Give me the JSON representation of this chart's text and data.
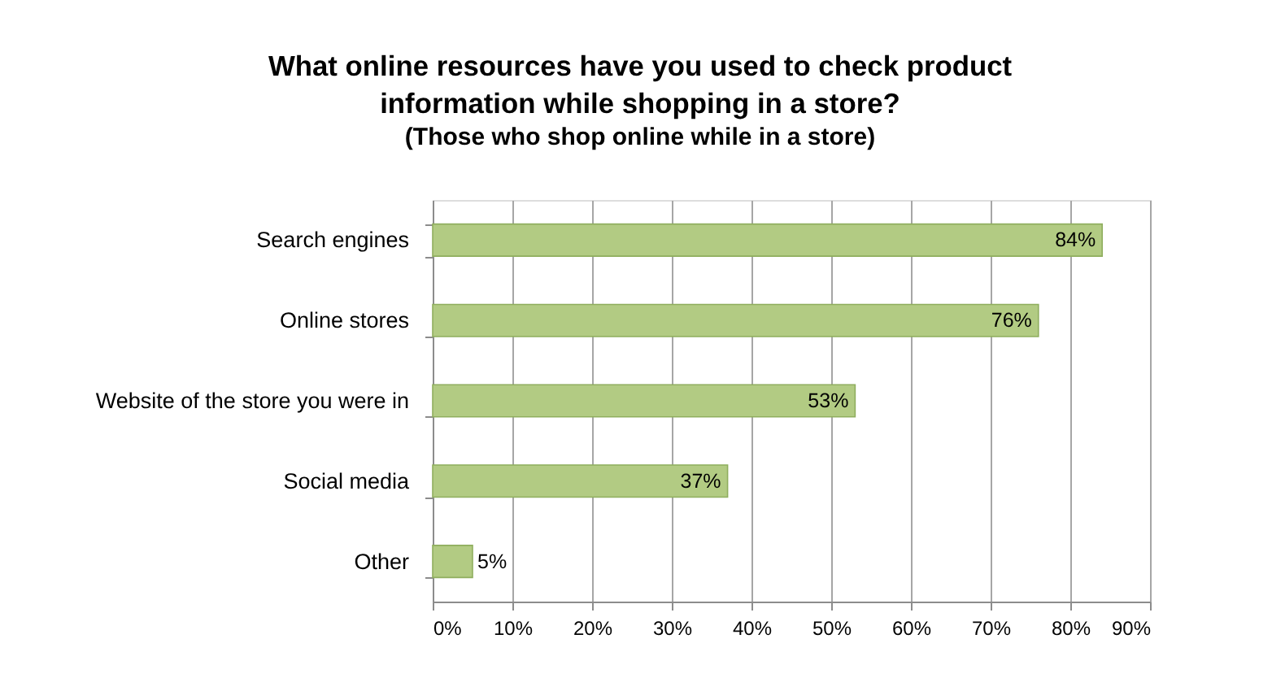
{
  "chart_data": {
    "type": "bar",
    "orientation": "horizontal",
    "title": "What online resources have you used to check product information while shopping in a store?",
    "subtitle": "(Those who shop online while in a store)",
    "categories": [
      "Search engines",
      "Online stores",
      "Website of the store you were in",
      "Social media",
      "Other"
    ],
    "values": [
      84,
      76,
      53,
      37,
      5
    ],
    "color": "#b2cb83",
    "xlim": [
      0,
      90
    ],
    "xticks": [
      {
        "value": 0,
        "label": "0%"
      },
      {
        "value": 10,
        "label": "10%"
      },
      {
        "value": 20,
        "label": "20%"
      },
      {
        "value": 30,
        "label": "30%"
      },
      {
        "value": 40,
        "label": "40%"
      },
      {
        "value": 50,
        "label": "50%"
      },
      {
        "value": 60,
        "label": "60%"
      },
      {
        "value": 70,
        "label": "70%"
      },
      {
        "value": 80,
        "label": "80%"
      },
      {
        "value": 90,
        "label": "90%"
      }
    ],
    "value_labels": [
      "84%",
      "76%",
      "53%",
      "37%",
      "5%"
    ],
    "grid": "x"
  }
}
